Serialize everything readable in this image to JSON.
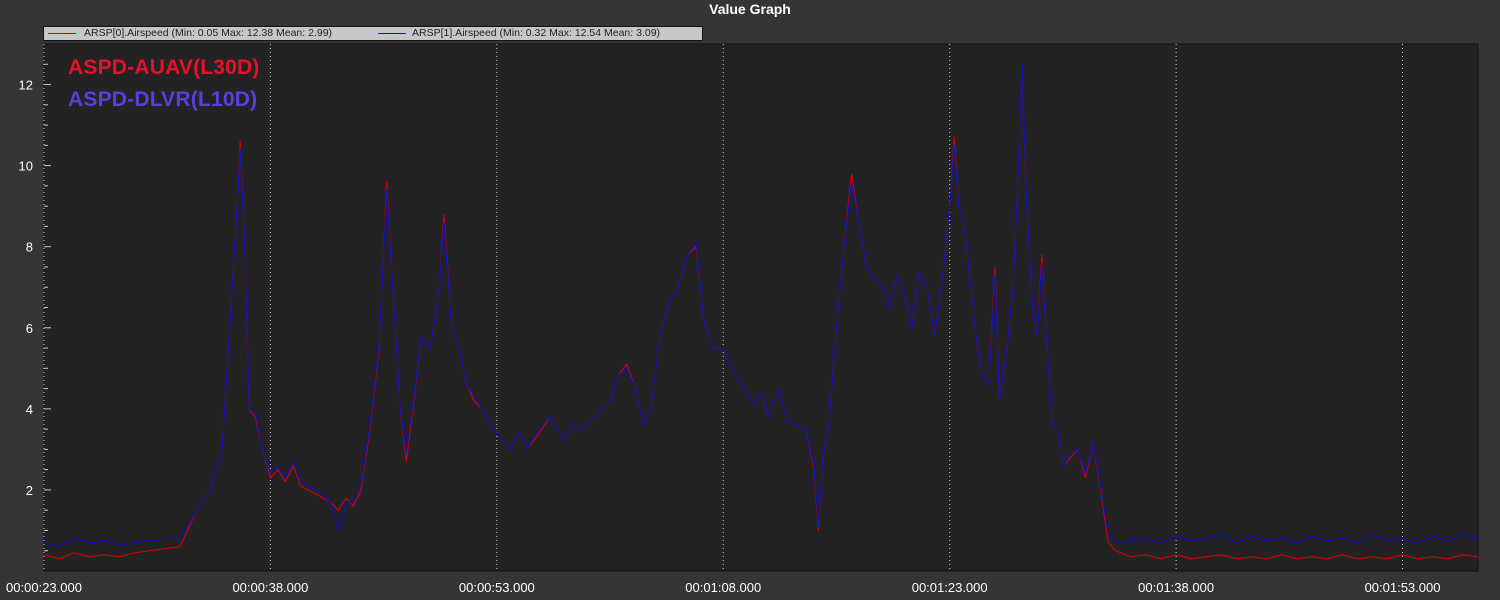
{
  "window": {
    "title": "Value Graph"
  },
  "legend": {
    "entries": [
      {
        "label": "ARSP[0].Airspeed  (Min: 0.05 Max: 12.38 Mean: 2.99)",
        "color": "#d00000"
      },
      {
        "label": "ARSP[1].Airspeed  (Min: 0.32 Max: 12.54 Mean: 3.09)",
        "color": "#1010c0"
      }
    ]
  },
  "overlay_labels": [
    {
      "text": "ASPD-AUAV(L30D)",
      "color": "#e8102a"
    },
    {
      "text": "ASPD-DLVR(L10D)",
      "color": "#5a3fe0"
    }
  ],
  "colors": {
    "background": "#353535",
    "plot_background": "#232323",
    "grid": "#cfcfcf"
  },
  "chart_data": {
    "type": "line",
    "title": "Value Graph",
    "xlabel": "",
    "ylabel": "",
    "x_unit": "time (hh:mm:ss.sss)",
    "xlim": [
      23,
      118
    ],
    "ylim": [
      0,
      13
    ],
    "x_ticks": [
      {
        "value": 23,
        "label": "00:00:23.000"
      },
      {
        "value": 38,
        "label": "00:00:38.000"
      },
      {
        "value": 53,
        "label": "00:00:53.000"
      },
      {
        "value": 68,
        "label": "00:01:08.000"
      },
      {
        "value": 83,
        "label": "00:01:23.000"
      },
      {
        "value": 98,
        "label": "00:01:38.000"
      },
      {
        "value": 113,
        "label": "00:01:53.000"
      }
    ],
    "y_ticks": [
      2,
      4,
      6,
      8,
      10,
      12
    ],
    "grid": true,
    "legend_position": "top-left",
    "series": [
      {
        "name": "ARSP[0].Airspeed",
        "color": "#d00000",
        "points": [
          [
            23,
            0.4
          ],
          [
            24,
            0.3
          ],
          [
            25,
            0.45
          ],
          [
            26,
            0.35
          ],
          [
            27,
            0.4
          ],
          [
            28,
            0.35
          ],
          [
            29,
            0.45
          ],
          [
            30,
            0.5
          ],
          [
            32,
            0.6
          ],
          [
            33,
            1.4
          ],
          [
            34,
            2.0
          ],
          [
            34.8,
            3.0
          ],
          [
            35.3,
            6.0
          ],
          [
            35.8,
            9.0
          ],
          [
            36,
            10.6
          ],
          [
            36.3,
            8.0
          ],
          [
            36.6,
            4.0
          ],
          [
            37,
            3.8
          ],
          [
            37.5,
            3.0
          ],
          [
            38,
            2.3
          ],
          [
            38.5,
            2.5
          ],
          [
            39,
            2.2
          ],
          [
            39.5,
            2.6
          ],
          [
            40,
            2.1
          ],
          [
            41,
            1.9
          ],
          [
            42,
            1.7
          ],
          [
            42.5,
            1.5
          ],
          [
            43,
            1.8
          ],
          [
            43.5,
            1.6
          ],
          [
            44,
            2.0
          ],
          [
            44.6,
            3.5
          ],
          [
            45.2,
            5.5
          ],
          [
            45.7,
            9.6
          ],
          [
            46.1,
            7.0
          ],
          [
            46.6,
            4.0
          ],
          [
            47,
            2.7
          ],
          [
            47.5,
            4.2
          ],
          [
            48,
            5.8
          ],
          [
            48.6,
            5.5
          ],
          [
            49.2,
            7.0
          ],
          [
            49.5,
            8.8
          ],
          [
            50,
            6.0
          ],
          [
            50.5,
            5.5
          ],
          [
            51,
            4.6
          ],
          [
            51.5,
            4.2
          ],
          [
            52,
            4.0
          ],
          [
            52.6,
            3.6
          ],
          [
            53.2,
            3.3
          ],
          [
            53.8,
            3.0
          ],
          [
            54.5,
            3.4
          ],
          [
            55,
            3.0
          ],
          [
            55.8,
            3.4
          ],
          [
            56.5,
            3.8
          ],
          [
            57,
            3.5
          ],
          [
            57.5,
            3.2
          ],
          [
            58,
            3.6
          ],
          [
            58.6,
            3.5
          ],
          [
            59.5,
            3.8
          ],
          [
            60.5,
            4.2
          ],
          [
            61,
            4.8
          ],
          [
            61.6,
            5.1
          ],
          [
            62.2,
            4.5
          ],
          [
            62.7,
            3.6
          ],
          [
            63.2,
            4.0
          ],
          [
            63.8,
            5.8
          ],
          [
            64.4,
            6.6
          ],
          [
            65,
            7.0
          ],
          [
            65.6,
            7.8
          ],
          [
            66.2,
            8.0
          ],
          [
            66.7,
            6.2
          ],
          [
            67.3,
            5.5
          ],
          [
            68,
            5.5
          ],
          [
            68.5,
            5.0
          ],
          [
            69.2,
            4.6
          ],
          [
            70,
            4.1
          ],
          [
            70.5,
            4.4
          ],
          [
            71,
            3.8
          ],
          [
            71.7,
            4.5
          ],
          [
            72.2,
            3.7
          ],
          [
            72.8,
            3.6
          ],
          [
            73.5,
            3.5
          ],
          [
            74,
            2.5
          ],
          [
            74.3,
            1.0
          ],
          [
            74.6,
            2.8
          ],
          [
            75,
            3.6
          ],
          [
            75.5,
            6.0
          ],
          [
            76,
            8.0
          ],
          [
            76.5,
            9.8
          ],
          [
            77,
            8.5
          ],
          [
            77.5,
            7.5
          ],
          [
            78,
            7.2
          ],
          [
            78.5,
            7.0
          ],
          [
            79,
            6.5
          ],
          [
            79.5,
            7.3
          ],
          [
            80,
            6.8
          ],
          [
            80.5,
            6.0
          ],
          [
            81,
            7.4
          ],
          [
            81.5,
            7.0
          ],
          [
            82,
            5.8
          ],
          [
            82.6,
            7.5
          ],
          [
            83,
            9.0
          ],
          [
            83.3,
            10.7
          ],
          [
            83.6,
            9.0
          ],
          [
            84,
            8.4
          ],
          [
            84.4,
            7.0
          ],
          [
            84.8,
            5.6
          ],
          [
            85.2,
            4.8
          ],
          [
            85.6,
            4.6
          ],
          [
            86,
            7.5
          ],
          [
            86.3,
            4.2
          ],
          [
            86.8,
            5.5
          ],
          [
            87.2,
            7.0
          ],
          [
            87.5,
            9.5
          ],
          [
            87.8,
            12.4
          ],
          [
            88.1,
            9.0
          ],
          [
            88.5,
            6.5
          ],
          [
            88.8,
            5.8
          ],
          [
            89.1,
            7.8
          ],
          [
            89.4,
            5.8
          ],
          [
            89.8,
            3.6
          ],
          [
            90.2,
            3.4
          ],
          [
            90.6,
            2.6
          ],
          [
            91,
            2.8
          ],
          [
            91.5,
            3.0
          ],
          [
            92,
            2.3
          ],
          [
            92.5,
            3.2
          ],
          [
            93,
            2.0
          ],
          [
            93.5,
            0.7
          ],
          [
            94,
            0.5
          ],
          [
            95,
            0.35
          ],
          [
            96,
            0.4
          ],
          [
            97,
            0.3
          ],
          [
            98,
            0.4
          ],
          [
            99,
            0.3
          ],
          [
            100,
            0.35
          ],
          [
            101,
            0.4
          ],
          [
            102,
            0.3
          ],
          [
            103,
            0.35
          ],
          [
            104,
            0.3
          ],
          [
            105,
            0.4
          ],
          [
            106,
            0.3
          ],
          [
            107,
            0.35
          ],
          [
            108,
            0.3
          ],
          [
            109,
            0.4
          ],
          [
            110,
            0.3
          ],
          [
            111,
            0.35
          ],
          [
            112,
            0.3
          ],
          [
            113,
            0.4
          ],
          [
            114,
            0.3
          ],
          [
            115,
            0.35
          ],
          [
            116,
            0.3
          ],
          [
            117,
            0.4
          ],
          [
            118,
            0.35
          ]
        ]
      },
      {
        "name": "ARSP[1].Airspeed",
        "color": "#1010c0",
        "points": [
          [
            23,
            0.7
          ],
          [
            24,
            0.6
          ],
          [
            25,
            0.8
          ],
          [
            26,
            0.7
          ],
          [
            27,
            0.75
          ],
          [
            28,
            0.65
          ],
          [
            29,
            0.7
          ],
          [
            30,
            0.75
          ],
          [
            32,
            0.8
          ],
          [
            33,
            1.4
          ],
          [
            34,
            2.0
          ],
          [
            34.8,
            3.0
          ],
          [
            35.3,
            6.0
          ],
          [
            35.8,
            9.0
          ],
          [
            36,
            10.4
          ],
          [
            36.3,
            8.0
          ],
          [
            36.6,
            4.0
          ],
          [
            37,
            3.9
          ],
          [
            37.5,
            3.0
          ],
          [
            38,
            2.4
          ],
          [
            38.5,
            2.6
          ],
          [
            39,
            2.3
          ],
          [
            39.5,
            2.7
          ],
          [
            40,
            2.2
          ],
          [
            41,
            2.0
          ],
          [
            42,
            1.7
          ],
          [
            42.5,
            1.0
          ],
          [
            43,
            1.7
          ],
          [
            43.5,
            1.7
          ],
          [
            44,
            2.1
          ],
          [
            44.6,
            3.6
          ],
          [
            45.2,
            5.6
          ],
          [
            45.7,
            9.4
          ],
          [
            46.1,
            7.0
          ],
          [
            46.6,
            4.0
          ],
          [
            47,
            2.9
          ],
          [
            47.5,
            4.3
          ],
          [
            48,
            5.8
          ],
          [
            48.6,
            5.5
          ],
          [
            49.2,
            7.0
          ],
          [
            49.5,
            8.6
          ],
          [
            50,
            6.0
          ],
          [
            50.5,
            5.5
          ],
          [
            51,
            4.6
          ],
          [
            51.5,
            4.3
          ],
          [
            52,
            4.0
          ],
          [
            52.6,
            3.6
          ],
          [
            53.2,
            3.3
          ],
          [
            53.8,
            3.0
          ],
          [
            54.5,
            3.4
          ],
          [
            55,
            3.0
          ],
          [
            55.8,
            3.5
          ],
          [
            56.5,
            3.8
          ],
          [
            57,
            3.5
          ],
          [
            57.5,
            3.2
          ],
          [
            58,
            3.6
          ],
          [
            58.6,
            3.5
          ],
          [
            59.5,
            3.8
          ],
          [
            60.5,
            4.2
          ],
          [
            61,
            4.8
          ],
          [
            61.6,
            5.0
          ],
          [
            62.2,
            4.5
          ],
          [
            62.7,
            3.6
          ],
          [
            63.2,
            4.0
          ],
          [
            63.8,
            5.8
          ],
          [
            64.4,
            6.6
          ],
          [
            65,
            7.0
          ],
          [
            65.6,
            7.8
          ],
          [
            66.2,
            8.1
          ],
          [
            66.7,
            6.2
          ],
          [
            67.3,
            5.5
          ],
          [
            68,
            5.5
          ],
          [
            68.5,
            5.0
          ],
          [
            69.2,
            4.6
          ],
          [
            70,
            4.1
          ],
          [
            70.5,
            4.4
          ],
          [
            71,
            3.8
          ],
          [
            71.7,
            4.5
          ],
          [
            72.2,
            3.7
          ],
          [
            72.8,
            3.6
          ],
          [
            73.5,
            3.5
          ],
          [
            74,
            2.6
          ],
          [
            74.3,
            1.1
          ],
          [
            74.6,
            2.8
          ],
          [
            75,
            3.6
          ],
          [
            75.5,
            6.0
          ],
          [
            76,
            8.0
          ],
          [
            76.5,
            9.6
          ],
          [
            77,
            8.5
          ],
          [
            77.5,
            7.5
          ],
          [
            78,
            7.2
          ],
          [
            78.5,
            7.0
          ],
          [
            79,
            6.5
          ],
          [
            79.5,
            7.3
          ],
          [
            80,
            6.8
          ],
          [
            80.5,
            6.0
          ],
          [
            81,
            7.4
          ],
          [
            81.5,
            7.0
          ],
          [
            82,
            5.8
          ],
          [
            82.6,
            7.5
          ],
          [
            83,
            9.0
          ],
          [
            83.3,
            10.5
          ],
          [
            83.6,
            9.0
          ],
          [
            84,
            8.4
          ],
          [
            84.4,
            7.0
          ],
          [
            84.8,
            5.6
          ],
          [
            85.2,
            4.8
          ],
          [
            85.6,
            4.6
          ],
          [
            86,
            7.3
          ],
          [
            86.3,
            4.2
          ],
          [
            86.8,
            5.5
          ],
          [
            87.2,
            7.0
          ],
          [
            87.5,
            9.5
          ],
          [
            87.8,
            12.5
          ],
          [
            88.1,
            9.0
          ],
          [
            88.5,
            6.5
          ],
          [
            88.8,
            5.8
          ],
          [
            89.1,
            7.6
          ],
          [
            89.4,
            5.8
          ],
          [
            89.8,
            3.6
          ],
          [
            90.2,
            3.4
          ],
          [
            90.6,
            2.6
          ],
          [
            91,
            2.9
          ],
          [
            91.5,
            3.0
          ],
          [
            92,
            2.4
          ],
          [
            92.5,
            3.2
          ],
          [
            93,
            2.1
          ],
          [
            93.5,
            0.9
          ],
          [
            94,
            0.7
          ],
          [
            95,
            0.75
          ],
          [
            96,
            0.8
          ],
          [
            97,
            0.7
          ],
          [
            98,
            0.85
          ],
          [
            99,
            0.75
          ],
          [
            100,
            0.8
          ],
          [
            101,
            0.9
          ],
          [
            102,
            0.7
          ],
          [
            103,
            0.85
          ],
          [
            104,
            0.75
          ],
          [
            105,
            0.8
          ],
          [
            106,
            0.7
          ],
          [
            107,
            0.85
          ],
          [
            108,
            0.75
          ],
          [
            109,
            0.8
          ],
          [
            110,
            0.7
          ],
          [
            111,
            0.9
          ],
          [
            112,
            0.75
          ],
          [
            113,
            0.8
          ],
          [
            114,
            0.7
          ],
          [
            115,
            0.85
          ],
          [
            116,
            0.75
          ],
          [
            117,
            0.9
          ],
          [
            118,
            0.8
          ]
        ]
      }
    ]
  }
}
